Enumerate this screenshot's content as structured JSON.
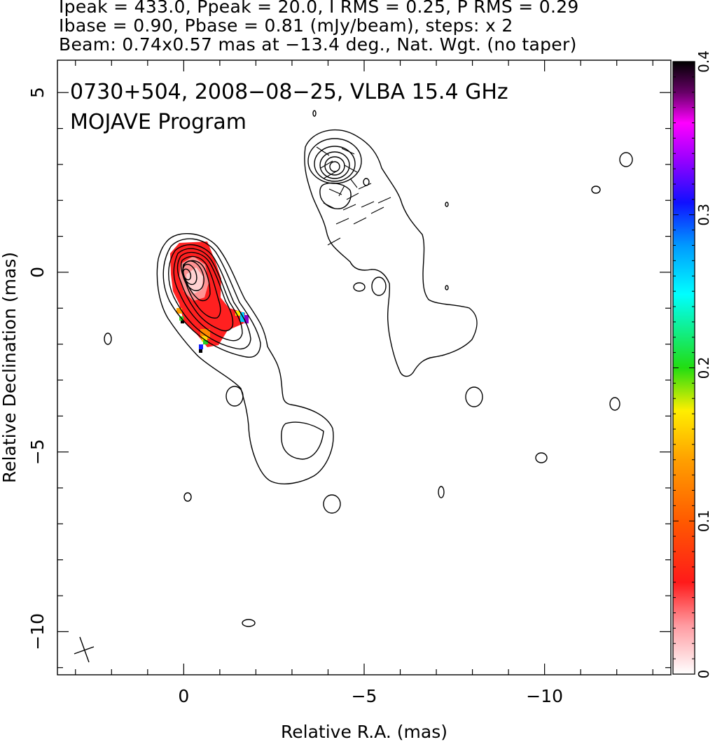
{
  "header": {
    "line1": "Ipeak = 433.0, Ppeak = 20.0, I RMS = 0.25, P RMS = 0.29",
    "line2": "Ibase = 0.90, Pbase = 0.81 (mJy/beam), steps: x 2",
    "line3": "Beam: 0.74x0.57 mas at −13.4 deg., Nat. Wgt. (no taper)"
  },
  "chart_data": {
    "type": "heatmap",
    "title": "0730+504, 2008−08−25, VLBA 15.4 GHz",
    "subtitle": "MOJAVE Program",
    "xlabel": "Relative R.A. (mas)",
    "ylabel": "Relative Declination (mas)",
    "xlim": [
      3.5,
      -13.5
    ],
    "ylim": [
      -11.2,
      5.9
    ],
    "x_ticks": [
      0,
      -5,
      -10
    ],
    "x_tick_labels": [
      "0",
      "−5",
      "−10"
    ],
    "y_ticks": [
      5,
      0,
      -5,
      -10
    ],
    "y_tick_labels": [
      "5",
      "0",
      "−5",
      "−10"
    ],
    "colorbar": {
      "range": [
        0,
        0.4
      ],
      "ticks": [
        0,
        0.1,
        0.2,
        0.3,
        0.4
      ],
      "tick_labels": [
        "0",
        "0.1",
        "0.2",
        "0.3",
        "0.4"
      ]
    },
    "beam": {
      "major_mas": 0.74,
      "minor_mas": 0.57,
      "pa_deg": -13.4
    },
    "contour_base_mJy": 0.9,
    "contour_step_factor": 2,
    "peak_intensity_mJy": 433.0,
    "core_position": [
      0,
      0
    ],
    "jet_component_position": [
      -4.0,
      3.0
    ]
  },
  "colors": {
    "ink": "#000000",
    "pol_fill": "#ff2222"
  }
}
